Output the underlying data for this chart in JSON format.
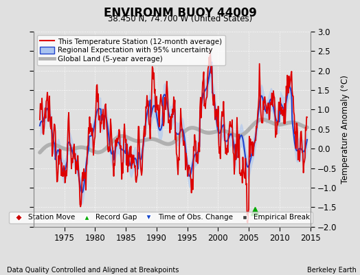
{
  "title": "ENVIRONM BUOY 44009",
  "subtitle": "38.450 N, 74.700 W (United States)",
  "xlabel_note": "Data Quality Controlled and Aligned at Breakpoints",
  "xlabel_note_right": "Berkeley Earth",
  "ylabel": "Temperature Anomaly (°C)",
  "xlim": [
    1970,
    2015
  ],
  "ylim": [
    -2,
    3
  ],
  "yticks": [
    -2,
    -1.5,
    -1,
    -0.5,
    0,
    0.5,
    1,
    1.5,
    2,
    2.5,
    3
  ],
  "xticks": [
    1975,
    1980,
    1985,
    1990,
    1995,
    2000,
    2005,
    2010,
    2015
  ],
  "bg_color": "#e0e0e0",
  "plot_bg_color": "#e0e0e0",
  "grid_color": "#ffffff",
  "record_gap_x": 2006,
  "record_gap_y": -1.6,
  "legend_labels": [
    "This Temperature Station (12-month average)",
    "Regional Expectation with 95% uncertainty",
    "Global Land (5-year average)"
  ],
  "marker_legend": [
    "Station Move",
    "Record Gap",
    "Time of Obs. Change",
    "Empirical Break"
  ],
  "station_lw": 1.3,
  "regional_lw": 1.5,
  "global_lw": 4.0
}
